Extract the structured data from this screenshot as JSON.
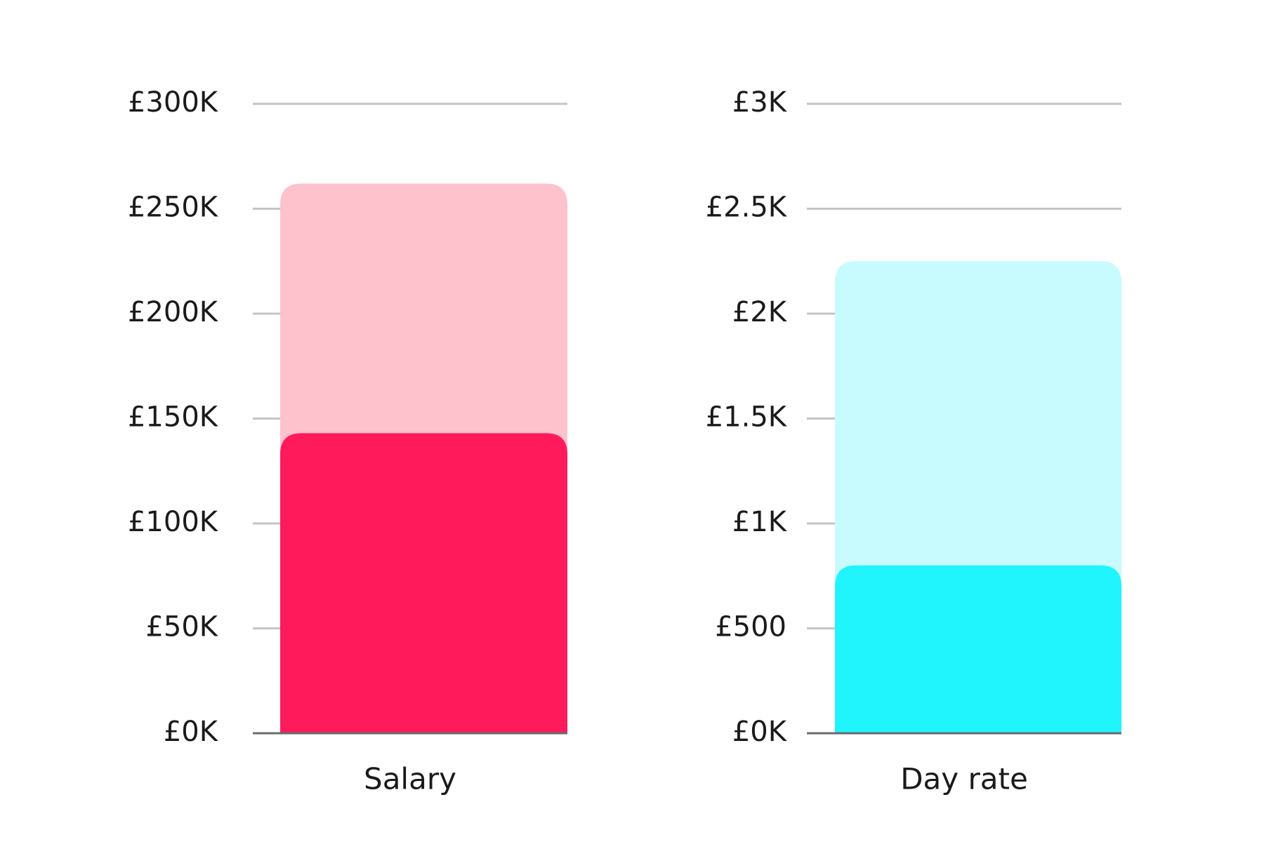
{
  "chart_data": [
    {
      "type": "bar",
      "layout": "overlapping",
      "categories": [
        "Salary"
      ],
      "ylim": [
        0,
        300000
      ],
      "yticks": [
        0,
        50000,
        100000,
        150000,
        200000,
        250000,
        300000
      ],
      "ytick_labels": [
        "£0K",
        "£50K",
        "£100K",
        "£150K",
        "£200K",
        "£250K",
        "£300K"
      ],
      "grid": true,
      "series": [
        {
          "values": [
            262000
          ],
          "color": "#fec2cd"
        },
        {
          "values": [
            143000
          ],
          "color": "#ff1a5c"
        }
      ]
    },
    {
      "type": "bar",
      "layout": "overlapping",
      "categories": [
        "Day rate"
      ],
      "ylim": [
        0,
        3000
      ],
      "yticks": [
        0,
        500,
        1000,
        1500,
        2000,
        2500,
        3000
      ],
      "ytick_labels": [
        "£0K",
        "£500",
        "£1K",
        "£1.5K",
        "£2K",
        "£2.5K",
        "£3K"
      ],
      "grid": true,
      "series": [
        {
          "values": [
            2250
          ],
          "color": "#c8fbfd"
        },
        {
          "values": [
            800
          ],
          "color": "#20f4fd"
        }
      ]
    }
  ]
}
